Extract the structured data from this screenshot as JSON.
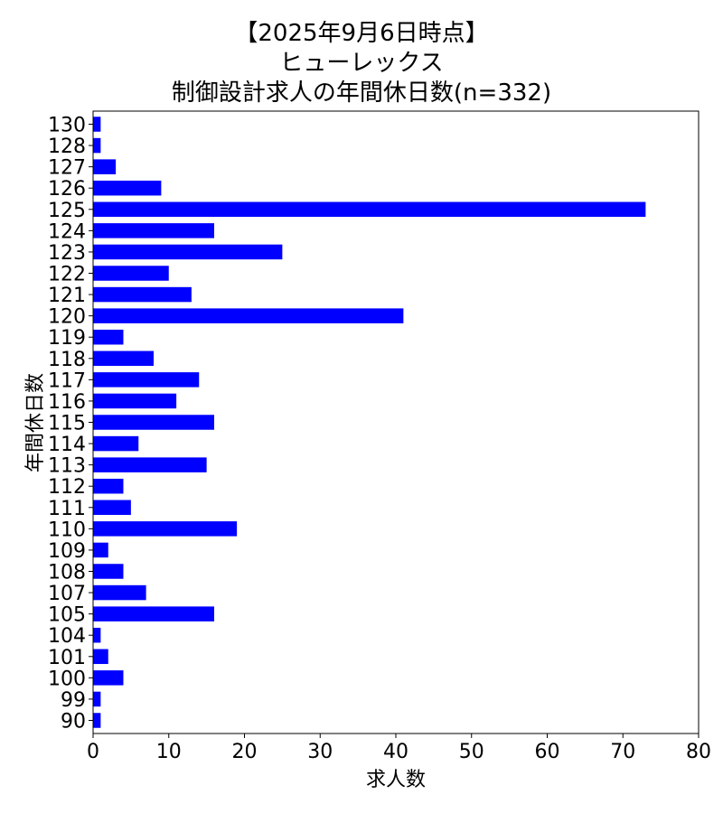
{
  "chart_data": {
    "type": "bar",
    "orientation": "horizontal",
    "title": [
      "【2025年9月6日時点】",
      "ヒューレックス",
      "制御設計求人の年間休日数(n=332)"
    ],
    "xlabel": "求人数",
    "ylabel": "年間休日数",
    "xlim": [
      0,
      80
    ],
    "xticks": [
      0,
      10,
      20,
      30,
      40,
      50,
      60,
      70,
      80
    ],
    "grid": false,
    "bar_color": "#0000ff",
    "categories": [
      "130",
      "128",
      "127",
      "126",
      "125",
      "124",
      "123",
      "122",
      "121",
      "120",
      "119",
      "118",
      "117",
      "116",
      "115",
      "114",
      "113",
      "112",
      "111",
      "110",
      "109",
      "108",
      "107",
      "105",
      "104",
      "101",
      "100",
      "99",
      "90"
    ],
    "values": [
      1,
      1,
      3,
      9,
      73,
      16,
      25,
      10,
      13,
      41,
      4,
      8,
      14,
      11,
      16,
      6,
      15,
      4,
      5,
      19,
      2,
      4,
      7,
      16,
      1,
      2,
      4,
      1,
      1
    ]
  }
}
